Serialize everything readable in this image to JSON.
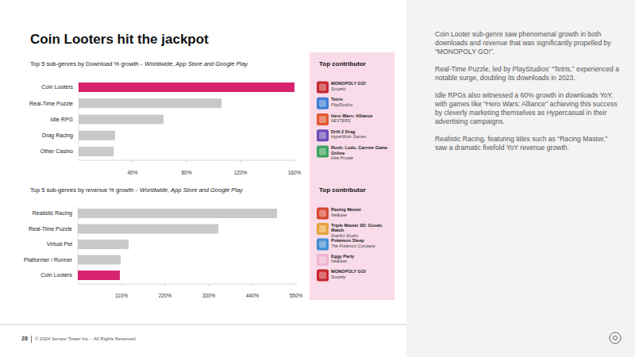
{
  "page": {
    "title": "Coin Looters hit the jackpot",
    "commentary": [
      "Coin Looter sub-genre saw phenomenal growth in both downloads and revenue that was significantly propelled by “MONOPOLY GO!”.",
      "Real-Time Puzzle, led by PlayStudios’ “Tetris,” experienced a notable surge, doubling its downloads in 2023.",
      "Idle RPGs also witnessed a 60% growth in downloads YoY, with games like “Hero Wars: Alliance” achieving this success by cleverly marketing themselves as Hypercasual in their advertising campaigns.",
      "Realistic Racing, featuring titles such as “Racing Master,” saw a dramatic fivefold YoY revenue growth."
    ],
    "contributor_panels": [
      {
        "title": "Top contributor",
        "items": [
          {
            "name": "MONOPOLY GO!",
            "publisher": "Scopely"
          },
          {
            "name": "Tetris",
            "publisher": "PlayStudios"
          },
          {
            "name": "Hero Wars: Alliance",
            "publisher": "NEXTERS"
          },
          {
            "name": "Drift 2 Drag",
            "publisher": "HyperWork Games"
          },
          {
            "name": "Rush: Ludo, Carrom Game Online",
            "publisher": "Hike Private"
          }
        ]
      },
      {
        "title": "Top contributor",
        "items": [
          {
            "name": "Racing Master",
            "publisher": "NetEase"
          },
          {
            "name": "Triple Master 3D: Goods Match",
            "publisher": "Stanfun Studio"
          },
          {
            "name": "Pokémon Sleep",
            "publisher": "The Pokémon Company"
          },
          {
            "name": "Eggy Party",
            "publisher": "NetEase"
          },
          {
            "name": "MONOPOLY GO!",
            "publisher": "Scopely"
          }
        ]
      }
    ],
    "footer": {
      "page_number": "28",
      "copyright": "© 2024 Sensor Tower Inc. - All Rights Reserved"
    }
  },
  "chart_data": [
    {
      "type": "bar",
      "orientation": "horizontal",
      "title": "Top 5 sub-genres by Download % growth -",
      "subtitle": "Worldwide, App Store and Google Play",
      "categories": [
        "Coin Looters",
        "Real-Time Puzzle",
        "Idle RPG",
        "Drag Racing",
        "Other Casino"
      ],
      "values": [
        160,
        106,
        63,
        27,
        26
      ],
      "colors": [
        "#d6246e",
        "#c9c9c9",
        "#c9c9c9",
        "#c9c9c9",
        "#c9c9c9"
      ],
      "xlim": [
        0,
        160
      ],
      "xticks": [
        {
          "value": 40,
          "label": "40%"
        },
        {
          "value": 80,
          "label": "80%"
        },
        {
          "value": 120,
          "label": "120%"
        },
        {
          "value": 160,
          "label": "160%"
        }
      ],
      "grid": false
    },
    {
      "type": "bar",
      "orientation": "horizontal",
      "title": "Top 5 sub-genres by revenue % growth -",
      "subtitle": "Worldwide, App Store and Google Play",
      "categories": [
        "Realistic Racing",
        "Real-Time Puzzle",
        "Virtual Pet",
        "Platformer / Runner",
        "Coin Looters"
      ],
      "values": [
        502,
        354,
        128,
        108,
        106
      ],
      "colors": [
        "#c9c9c9",
        "#c9c9c9",
        "#c9c9c9",
        "#c9c9c9",
        "#d6246e"
      ],
      "xlim": [
        0,
        550
      ],
      "xticks": [
        {
          "value": 110,
          "label": "110%"
        },
        {
          "value": 220,
          "label": "220%"
        },
        {
          "value": 330,
          "label": "330%"
        },
        {
          "value": 440,
          "label": "440%"
        },
        {
          "value": 550,
          "label": "550%"
        }
      ],
      "grid": false
    }
  ]
}
